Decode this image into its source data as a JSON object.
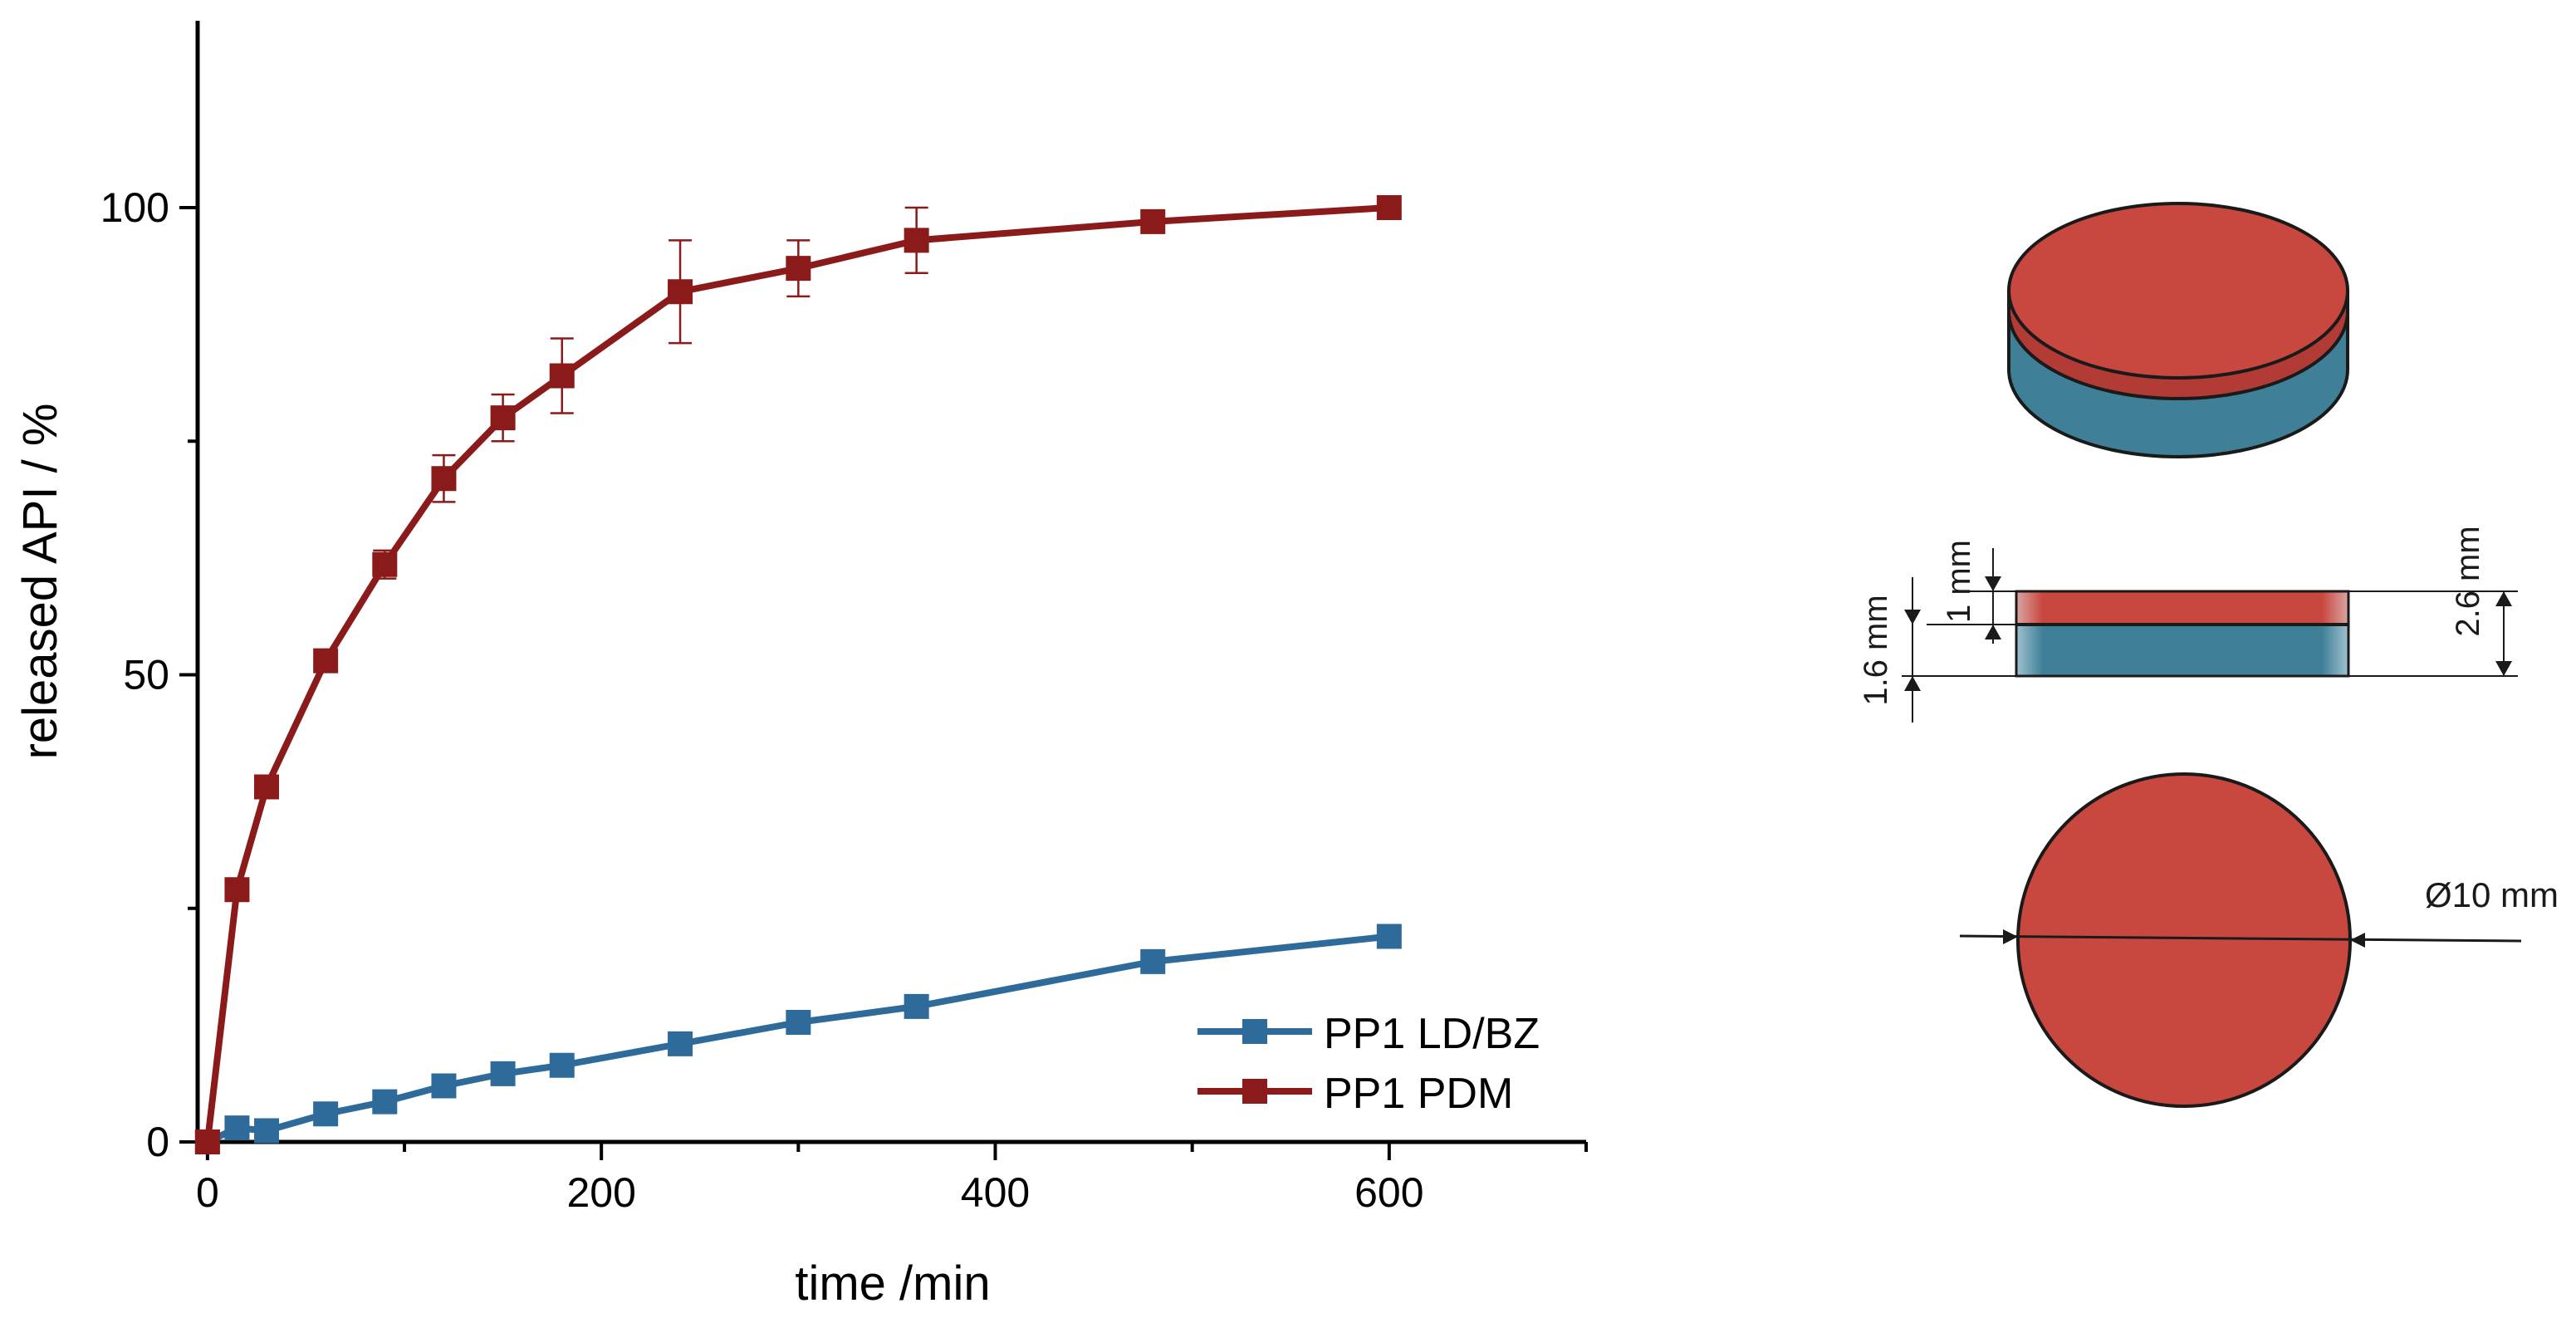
{
  "chart_data": {
    "type": "line",
    "title": "",
    "xlabel": "time /min",
    "ylabel": "released API / %",
    "xlim": [
      -5,
      700
    ],
    "ylim": [
      0,
      120
    ],
    "xticks": [
      0,
      200,
      400,
      600
    ],
    "yticks": [
      0,
      50,
      100
    ],
    "xtick_labels": [
      "0",
      "200",
      "400",
      "600"
    ],
    "ytick_labels": [
      "0",
      "50",
      "100"
    ],
    "legend_position": "bottom-right",
    "series": [
      {
        "name": "PP1 LD/BZ",
        "color": "#2f6b9a",
        "marker": "square",
        "x": [
          0,
          15,
          30,
          60,
          90,
          120,
          150,
          180,
          240,
          300,
          360,
          480,
          600
        ],
        "y": [
          0,
          1.5,
          1.2,
          3.0,
          4.3,
          6.0,
          7.3,
          8.2,
          10.5,
          12.8,
          14.5,
          19.3,
          22.0
        ],
        "err": [
          0,
          0,
          0,
          0,
          0,
          0,
          0,
          0,
          0,
          0,
          0,
          0,
          0
        ]
      },
      {
        "name": "PP1 PDM",
        "color": "#8b1a1a",
        "marker": "square",
        "x": [
          0,
          15,
          30,
          60,
          90,
          120,
          150,
          180,
          240,
          300,
          360,
          480,
          600
        ],
        "y": [
          0,
          27.0,
          38.0,
          51.5,
          61.8,
          71.0,
          77.5,
          82.0,
          91.0,
          93.5,
          96.5,
          98.5,
          100
        ],
        "err": [
          0,
          1.0,
          0.5,
          1.0,
          1.5,
          2.5,
          2.5,
          4.0,
          5.5,
          3.0,
          3.5,
          1.0,
          0.5
        ]
      }
    ]
  },
  "tablet_diagram": {
    "top_color": "#c8473f",
    "bottom_color": "#3f7f97",
    "dim_top_layer": "1 mm",
    "dim_bottom_layer": "1.6 mm",
    "dim_total_height": "2.6 mm",
    "dim_diameter": "Ø10 mm"
  }
}
